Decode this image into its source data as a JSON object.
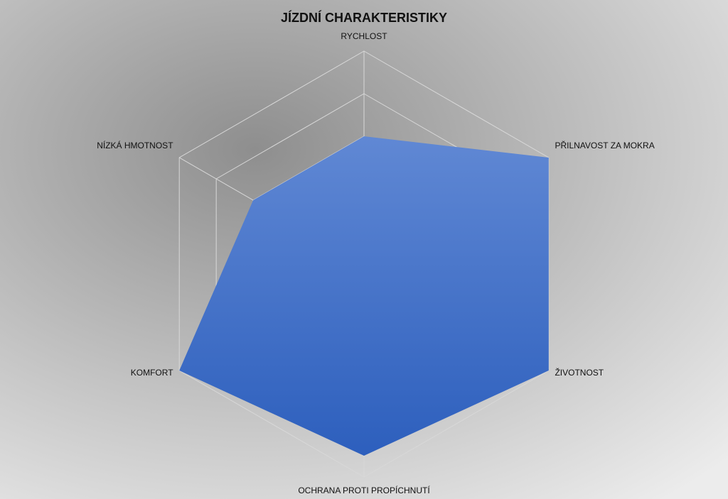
{
  "chart_data": {
    "type": "radar",
    "title": "JÍZDNÍ CHARAKTERISTIKY",
    "categories": [
      "RYCHLOST",
      "PŘILNAVOST ZA MOKRA",
      "ŽIVOTNOST",
      "OCHRANA PROTI PROPÍCHNUTÍ",
      "KOMFORT",
      "NÍZKÁ HMOTNOST"
    ],
    "values": [
      6,
      10,
      10,
      9,
      10,
      6
    ],
    "color": "#3f6fcc",
    "rlim": [
      0,
      10
    ],
    "rticks": [
      0,
      2,
      4,
      6,
      8,
      10
    ],
    "grid": true
  }
}
